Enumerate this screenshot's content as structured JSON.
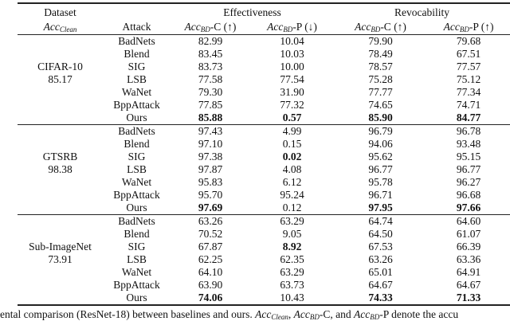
{
  "header": {
    "dataset": "Dataset",
    "acc_clean": "Acc",
    "acc_clean_sub": "Clean",
    "attack": "Attack",
    "effectiveness": "Effectiveness",
    "revocability": "Revocability",
    "acc": "Acc",
    "bd": "BD",
    "columns": [
      "-C (↑)",
      "-P (↓)",
      "-C (↑)",
      "-P (↑)"
    ]
  },
  "groups": [
    {
      "dataset": "CIFAR-10",
      "clean": "85.17",
      "rows": [
        {
          "attack": "BadNets",
          "v": [
            "82.99",
            "10.04",
            "79.90",
            "79.68"
          ],
          "bold": [
            false,
            false,
            false,
            false
          ]
        },
        {
          "attack": "Blend",
          "v": [
            "83.45",
            "10.03",
            "78.49",
            "67.51"
          ],
          "bold": [
            false,
            false,
            false,
            false
          ]
        },
        {
          "attack": "SIG",
          "v": [
            "83.73",
            "10.00",
            "78.57",
            "77.57"
          ],
          "bold": [
            false,
            false,
            false,
            false
          ]
        },
        {
          "attack": "LSB",
          "v": [
            "77.58",
            "77.54",
            "75.28",
            "75.12"
          ],
          "bold": [
            false,
            false,
            false,
            false
          ]
        },
        {
          "attack": "WaNet",
          "v": [
            "79.30",
            "31.90",
            "77.77",
            "77.34"
          ],
          "bold": [
            false,
            false,
            false,
            false
          ]
        },
        {
          "attack": "BppAttack",
          "v": [
            "77.85",
            "77.32",
            "74.65",
            "74.71"
          ],
          "bold": [
            false,
            false,
            false,
            false
          ]
        },
        {
          "attack": "Ours",
          "v": [
            "85.88",
            "0.57",
            "85.90",
            "84.77"
          ],
          "bold": [
            true,
            true,
            true,
            true
          ]
        }
      ]
    },
    {
      "dataset": "GTSRB",
      "clean": "98.38",
      "rows": [
        {
          "attack": "BadNets",
          "v": [
            "97.43",
            "4.99",
            "96.79",
            "96.78"
          ],
          "bold": [
            false,
            false,
            false,
            false
          ]
        },
        {
          "attack": "Blend",
          "v": [
            "97.10",
            "0.15",
            "94.06",
            "93.48"
          ],
          "bold": [
            false,
            false,
            false,
            false
          ]
        },
        {
          "attack": "SIG",
          "v": [
            "97.38",
            "0.02",
            "95.62",
            "95.15"
          ],
          "bold": [
            false,
            true,
            false,
            false
          ]
        },
        {
          "attack": "LSB",
          "v": [
            "97.87",
            "4.08",
            "96.77",
            "96.77"
          ],
          "bold": [
            false,
            false,
            false,
            false
          ]
        },
        {
          "attack": "WaNet",
          "v": [
            "95.83",
            "6.12",
            "95.78",
            "96.27"
          ],
          "bold": [
            false,
            false,
            false,
            false
          ]
        },
        {
          "attack": "BppAttack",
          "v": [
            "95.70",
            "95.24",
            "96.71",
            "96.68"
          ],
          "bold": [
            false,
            false,
            false,
            false
          ]
        },
        {
          "attack": "Ours",
          "v": [
            "97.69",
            "0.12",
            "97.95",
            "97.66"
          ],
          "bold": [
            true,
            false,
            true,
            true
          ]
        }
      ]
    },
    {
      "dataset": "Sub-ImageNet",
      "clean": "73.91",
      "rows": [
        {
          "attack": "BadNets",
          "v": [
            "63.26",
            "63.29",
            "64.74",
            "64.60"
          ],
          "bold": [
            false,
            false,
            false,
            false
          ]
        },
        {
          "attack": "Blend",
          "v": [
            "70.52",
            "9.05",
            "64.50",
            "61.07"
          ],
          "bold": [
            false,
            false,
            false,
            false
          ]
        },
        {
          "attack": "SIG",
          "v": [
            "67.87",
            "8.92",
            "67.53",
            "66.39"
          ],
          "bold": [
            false,
            true,
            false,
            false
          ]
        },
        {
          "attack": "LSB",
          "v": [
            "62.25",
            "62.35",
            "63.26",
            "63.36"
          ],
          "bold": [
            false,
            false,
            false,
            false
          ]
        },
        {
          "attack": "WaNet",
          "v": [
            "64.10",
            "63.29",
            "65.01",
            "64.91"
          ],
          "bold": [
            false,
            false,
            false,
            false
          ]
        },
        {
          "attack": "BppAttack",
          "v": [
            "63.90",
            "63.73",
            "64.67",
            "64.67"
          ],
          "bold": [
            false,
            false,
            false,
            false
          ]
        },
        {
          "attack": "Ours",
          "v": [
            "74.06",
            "10.43",
            "74.33",
            "71.33"
          ],
          "bold": [
            true,
            false,
            true,
            true
          ]
        }
      ]
    }
  ],
  "caption": {
    "part1": "ental comparison (ResNet-18) between baselines and ours. ",
    "part2": ", ",
    "part3": "-C, and ",
    "part4": "-P denote the accu"
  }
}
